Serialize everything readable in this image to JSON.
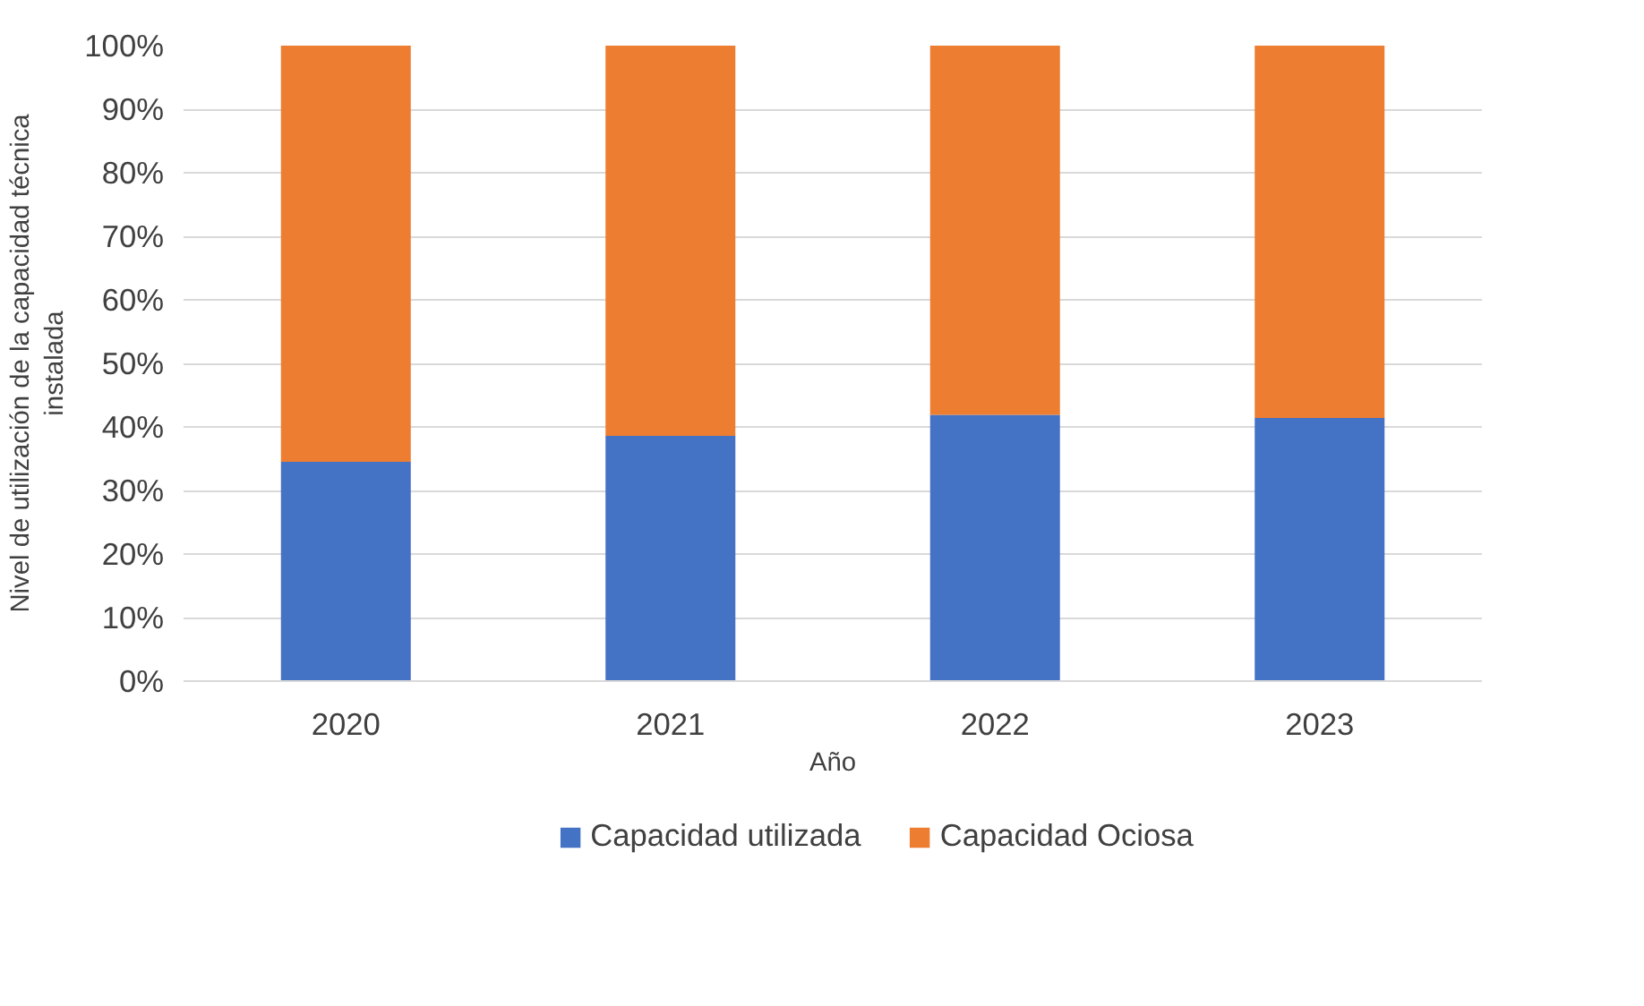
{
  "chart_data": {
    "type": "bar",
    "stacked": true,
    "xlabel": "Año",
    "ylabel": "Nivel de utilización de la capacidad técnica\ninstalada",
    "categories": [
      "2020",
      "2021",
      "2022",
      "2023"
    ],
    "series": [
      {
        "name": "Capacidad utilizada",
        "color": "#4472c4",
        "values": [
          34.5,
          38.6,
          41.9,
          41.4
        ]
      },
      {
        "name": "Capacidad Ociosa",
        "color": "#ed7d31",
        "values": [
          65.5,
          61.4,
          58.1,
          58.6
        ]
      }
    ],
    "ylim": [
      0,
      100
    ],
    "yticks": [
      {
        "value": 0,
        "label": "0%"
      },
      {
        "value": 10,
        "label": "10%"
      },
      {
        "value": 20,
        "label": "20%"
      },
      {
        "value": 30,
        "label": "30%"
      },
      {
        "value": 40,
        "label": "40%"
      },
      {
        "value": 50,
        "label": "50%"
      },
      {
        "value": 60,
        "label": "60%"
      },
      {
        "value": 70,
        "label": "70%"
      },
      {
        "value": 80,
        "label": "80%"
      },
      {
        "value": 90,
        "label": "90%"
      },
      {
        "value": 100,
        "label": "100%"
      }
    ],
    "grid": "y",
    "legend": "bottom"
  }
}
